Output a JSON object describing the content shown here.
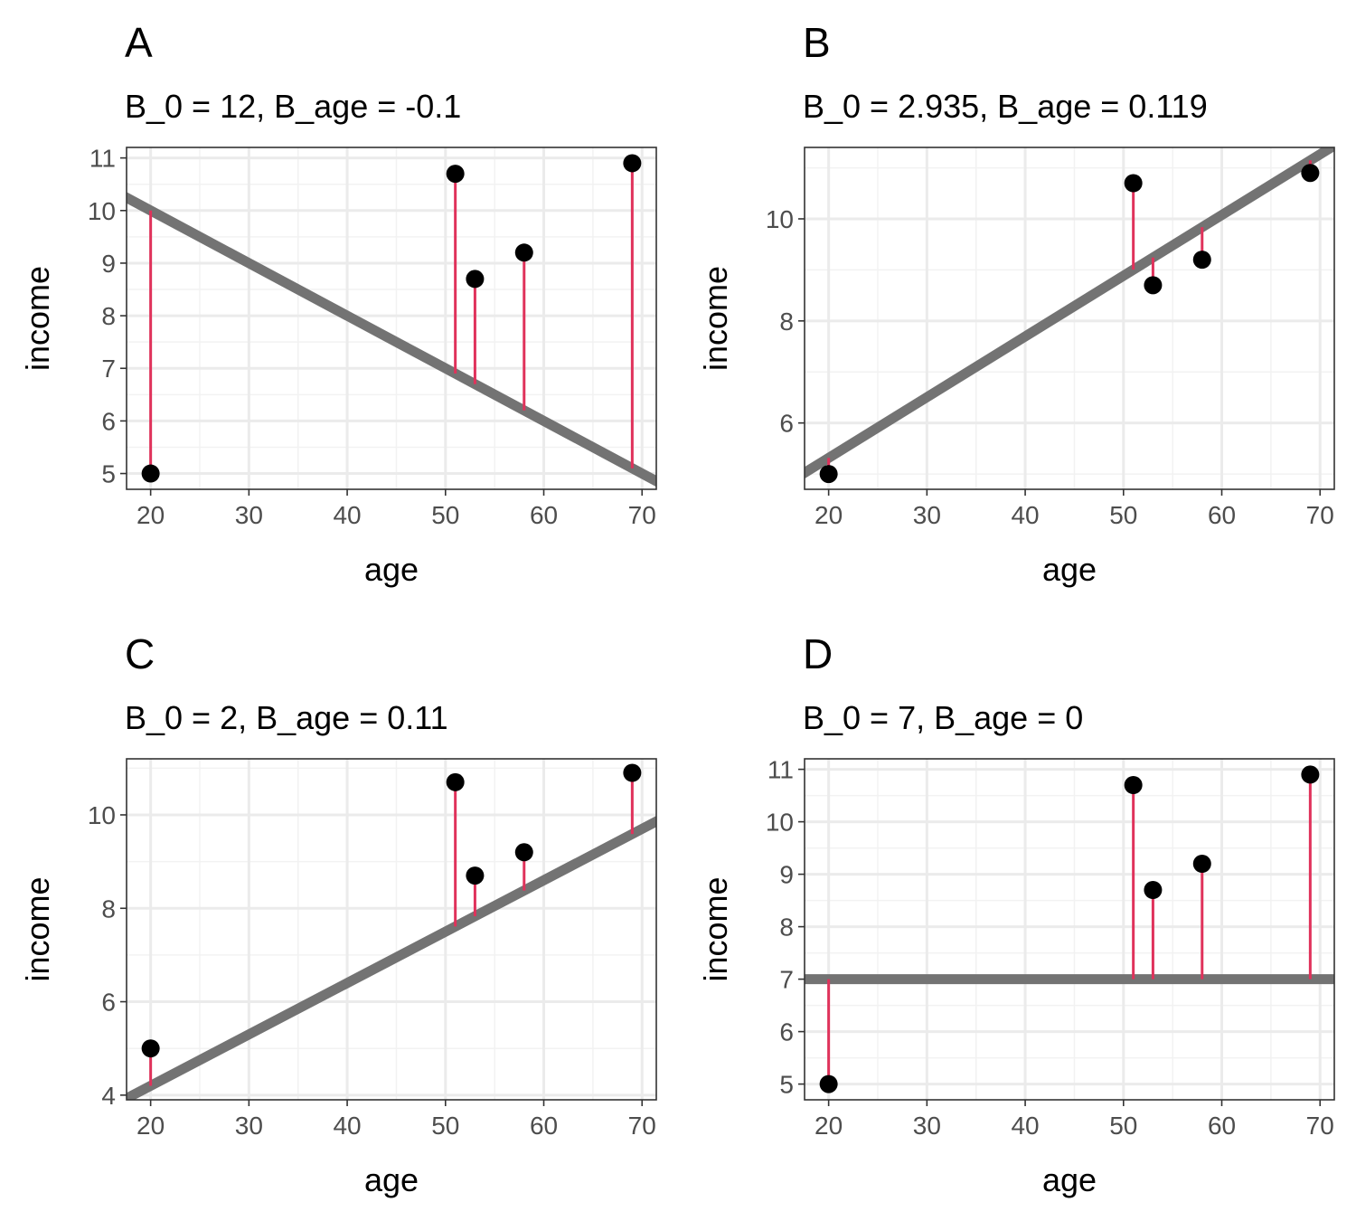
{
  "colors": {
    "background": "#ffffff",
    "panel_border": "#333333",
    "grid_major": "#ebebeb",
    "grid_minor": "#f2f2f2",
    "fit_line": "#737373",
    "residual": "#e0325b",
    "point": "#000000",
    "tick": "#333333"
  },
  "chart_data": [
    {
      "type": "scatter",
      "panel": "A",
      "title": "A",
      "subtitle": "B_0 = 12, B_age = -0.1",
      "xlabel": "age",
      "ylabel": "income",
      "x": [
        20,
        51,
        53,
        58,
        69
      ],
      "y": [
        5,
        10.7,
        8.7,
        9.2,
        10.9
      ],
      "fit_line": {
        "intercept": 12,
        "slope": -0.1
      },
      "xlim": [
        17.55,
        71.45
      ],
      "ylim": [
        4.7,
        11.2
      ],
      "x_ticks": [
        20,
        30,
        40,
        50,
        60,
        70
      ],
      "y_ticks": [
        5,
        6,
        7,
        8,
        9,
        10,
        11
      ],
      "grid": true
    },
    {
      "type": "scatter",
      "panel": "B",
      "title": "B",
      "subtitle": "B_0 = 2.935, B_age = 0.119",
      "xlabel": "age",
      "ylabel": "income",
      "x": [
        20,
        51,
        53,
        58,
        69
      ],
      "y": [
        5,
        10.7,
        8.7,
        9.2,
        10.9
      ],
      "fit_line": {
        "intercept": 2.935,
        "slope": 0.119
      },
      "xlim": [
        17.55,
        71.45
      ],
      "ylim": [
        4.7,
        11.4
      ],
      "x_ticks": [
        20,
        30,
        40,
        50,
        60,
        70
      ],
      "y_ticks": [
        6,
        8,
        10
      ],
      "grid": true
    },
    {
      "type": "scatter",
      "panel": "C",
      "title": "C",
      "subtitle": "B_0 = 2, B_age = 0.11",
      "xlabel": "age",
      "ylabel": "income",
      "x": [
        20,
        51,
        53,
        58,
        69
      ],
      "y": [
        5,
        10.7,
        8.7,
        9.2,
        10.9
      ],
      "fit_line": {
        "intercept": 2,
        "slope": 0.11
      },
      "xlim": [
        17.55,
        71.45
      ],
      "ylim": [
        3.9,
        11.2
      ],
      "x_ticks": [
        20,
        30,
        40,
        50,
        60,
        70
      ],
      "y_ticks": [
        4,
        6,
        8,
        10
      ],
      "grid": true
    },
    {
      "type": "scatter",
      "panel": "D",
      "title": "D",
      "subtitle": "B_0 = 7, B_age = 0",
      "xlabel": "age",
      "ylabel": "income",
      "x": [
        20,
        51,
        53,
        58,
        69
      ],
      "y": [
        5,
        10.7,
        8.7,
        9.2,
        10.9
      ],
      "fit_line": {
        "intercept": 7,
        "slope": 0
      },
      "xlim": [
        17.55,
        71.45
      ],
      "ylim": [
        4.7,
        11.2
      ],
      "x_ticks": [
        20,
        30,
        40,
        50,
        60,
        70
      ],
      "y_ticks": [
        5,
        6,
        7,
        8,
        9,
        10,
        11
      ],
      "grid": true
    }
  ]
}
